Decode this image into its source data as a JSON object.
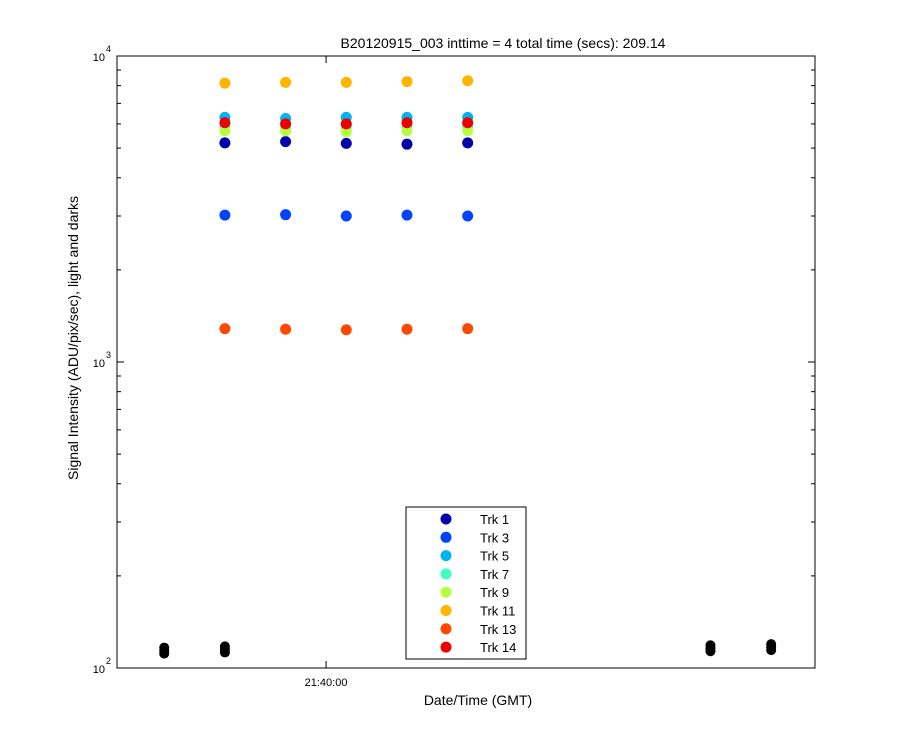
{
  "chart_data": {
    "type": "scatter",
    "title": "B20120915_003 inttime = 4 total time (secs): 209.14",
    "xlabel": "Date/Time (GMT)",
    "ylabel": "Signal Intensity (ADU/pix/sec), light and darks",
    "y_scale": "log",
    "ylim": [
      100,
      10000
    ],
    "y_major_ticks": [
      {
        "value": 100,
        "base": "10",
        "exp": "2"
      },
      {
        "value": 1000,
        "base": "10",
        "exp": "3"
      },
      {
        "value": 10000,
        "base": "10",
        "exp": "4"
      }
    ],
    "x_axis_type": "time",
    "xlim": [
      "21:38:58",
      "21:42:25"
    ],
    "x_ticks": [
      {
        "value": "21:40:00",
        "label": "21:40:00"
      }
    ],
    "grid": false,
    "legend_position": "bottom-center",
    "light_times": [
      "21:39:30",
      "21:39:48",
      "21:40:06",
      "21:40:24",
      "21:40:42"
    ],
    "series": [
      {
        "name": "Trk 1",
        "color": "#0000aa",
        "values": [
          5200,
          5250,
          5180,
          5150,
          5200
        ]
      },
      {
        "name": "Trk 3",
        "color": "#0044ff",
        "values": [
          3020,
          3030,
          3000,
          3020,
          3000
        ]
      },
      {
        "name": "Trk 5",
        "color": "#00b4f0",
        "values": [
          6300,
          6250,
          6300,
          6300,
          6300
        ]
      },
      {
        "name": "Trk 7",
        "color": "#40ffc0",
        "values": [
          5900,
          5850,
          5880,
          5900,
          5900
        ]
      },
      {
        "name": "Trk 9",
        "color": "#b4ff40",
        "values": [
          5700,
          5700,
          5650,
          5700,
          5700
        ]
      },
      {
        "name": "Trk 11",
        "color": "#ffb400",
        "values": [
          8150,
          8200,
          8200,
          8250,
          8300
        ]
      },
      {
        "name": "Trk 13",
        "color": "#ff4800",
        "values": [
          1285,
          1280,
          1275,
          1280,
          1285
        ]
      },
      {
        "name": "Trk 14",
        "color": "#ee0000",
        "values": [
          6050,
          6000,
          6000,
          6050,
          6050
        ]
      }
    ],
    "darks": {
      "color": "#000000",
      "times": [
        "21:39:12",
        "21:39:30",
        "21:41:54",
        "21:42:12"
      ],
      "values": [
        114,
        115,
        116,
        117
      ]
    }
  }
}
